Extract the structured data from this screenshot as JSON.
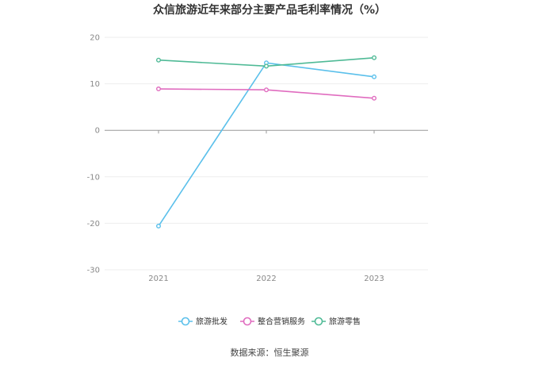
{
  "chart_data": {
    "type": "line",
    "title": "众信旅游近年来部分主要产品毛利率情况（%）",
    "categories": [
      "2021",
      "2022",
      "2023"
    ],
    "series": [
      {
        "name": "旅游批发",
        "values": [
          -20.6,
          14.5,
          11.5
        ],
        "color": "#5bc0eb"
      },
      {
        "name": "整合营销服务",
        "values": [
          8.9,
          8.7,
          6.9
        ],
        "color": "#e06cbf"
      },
      {
        "name": "旅游零售",
        "values": [
          15.1,
          13.8,
          15.6
        ],
        "color": "#4fba96"
      }
    ],
    "yticks": [
      20,
      10,
      0,
      -10,
      -20,
      -30
    ],
    "ylim": [
      -30,
      20
    ],
    "grid": true,
    "legend_position": "bottom"
  },
  "source_text": "数据来源：恒生聚源"
}
